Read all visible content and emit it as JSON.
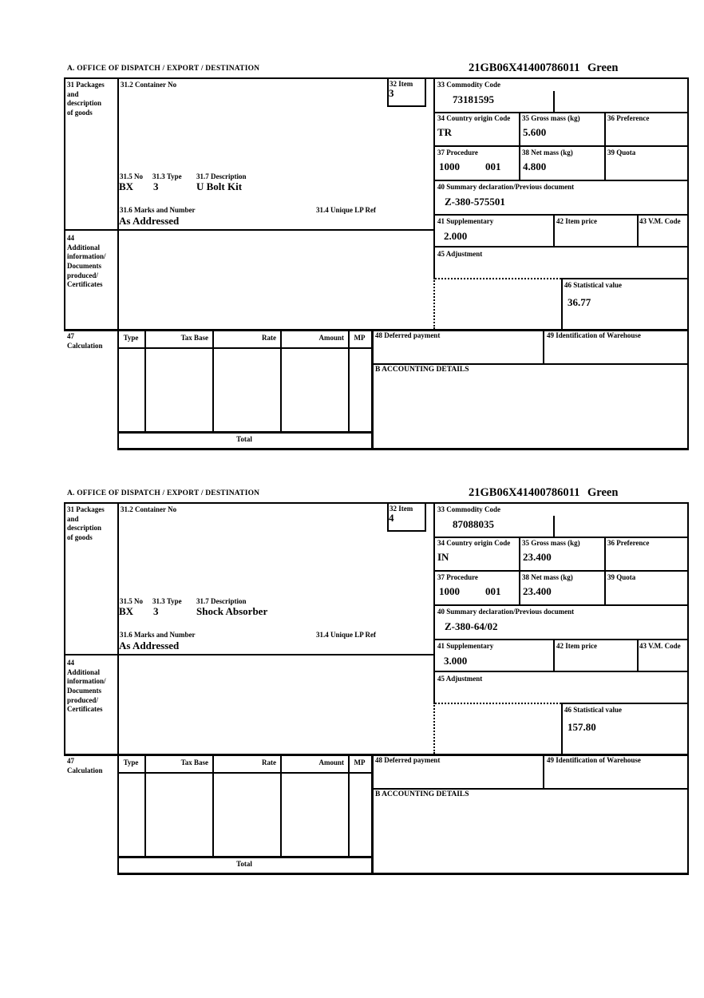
{
  "sections": [
    {
      "header": {
        "title": "A.  OFFICE OF DISPATCH / EXPORT / DESTINATION",
        "reference": "21GB06X41400786011",
        "status": "Green"
      },
      "box31": {
        "label": "31 Packages\nand\ndescription\nof goods",
        "container_label": "31.2 Container No",
        "no_label": "31.5 No",
        "no_value": "BX",
        "type_label": "31.3 Type",
        "type_value": "3",
        "desc_label": "31.7 Description",
        "desc_value": "U Bolt Kit",
        "marks_label": "31.6 Marks and Number",
        "marks_value": "As Addressed",
        "lp_label": "31.4 Unique LP Ref"
      },
      "box32": {
        "label": "32 Item",
        "value": "3"
      },
      "box33": {
        "label": "33 Commodity Code",
        "value": "73181595"
      },
      "box34": {
        "label": "34 Country origin Code",
        "value": "TR"
      },
      "box35": {
        "label": "35 Gross mass (kg)",
        "value": "5.600"
      },
      "box36": {
        "label": "36 Preference",
        "value": ""
      },
      "box37": {
        "label": "37 Procedure",
        "value1": "1000",
        "value2": "001"
      },
      "box38": {
        "label": "38 Net mass (kg)",
        "value": "4.800"
      },
      "box39": {
        "label": "39 Quota",
        "value": ""
      },
      "box40": {
        "label": "40 Summary declaration/Previous document",
        "value": "Z-380-575501"
      },
      "box41": {
        "label": "41 Supplementary",
        "value": "2.000"
      },
      "box42": {
        "label": "42 Item price",
        "value": ""
      },
      "box43": {
        "label": "43 V.M. Code",
        "value": ""
      },
      "box44": {
        "label": "44\nAdditional\ninformation/\nDocuments\nproduced/\nCertificates"
      },
      "box45": {
        "label": "45 Adjustment",
        "value": ""
      },
      "box46": {
        "label": "46 Statistical value",
        "value": "36.77"
      },
      "box47": {
        "label": "47\nCalculation",
        "columns": [
          "Type",
          "Tax Base",
          "Rate",
          "Amount",
          "MP"
        ],
        "total_label": "Total"
      },
      "box48": {
        "label": "48 Deferred payment",
        "value": ""
      },
      "box49": {
        "label": "49 Identification of Warehouse",
        "value": ""
      },
      "accounting": {
        "label": "B ACCOUNTING DETAILS"
      }
    },
    {
      "header": {
        "title": "A.  OFFICE OF DISPATCH / EXPORT / DESTINATION",
        "reference": "21GB06X41400786011",
        "status": "Green"
      },
      "box31": {
        "label": "31 Packages\nand\ndescription\nof goods",
        "container_label": "31.2 Container No",
        "no_label": "31.5 No",
        "no_value": "BX",
        "type_label": "31.3 Type",
        "type_value": "3",
        "desc_label": "31.7 Description",
        "desc_value": "Shock Absorber",
        "marks_label": "31.6 Marks and Number",
        "marks_value": "As Addressed",
        "lp_label": "31.4 Unique LP Ref"
      },
      "box32": {
        "label": "32 Item",
        "value": "4"
      },
      "box33": {
        "label": "33 Commodity Code",
        "value": "87088035"
      },
      "box34": {
        "label": "34 Country origin Code",
        "value": "IN"
      },
      "box35": {
        "label": "35 Gross mass (kg)",
        "value": "23.400"
      },
      "box36": {
        "label": "36 Preference",
        "value": ""
      },
      "box37": {
        "label": "37 Procedure",
        "value1": "1000",
        "value2": "001"
      },
      "box38": {
        "label": "38 Net mass (kg)",
        "value": "23.400"
      },
      "box39": {
        "label": "39 Quota",
        "value": ""
      },
      "box40": {
        "label": "40 Summary declaration/Previous document",
        "value": "Z-380-64/02"
      },
      "box41": {
        "label": "41 Supplementary",
        "value": "3.000"
      },
      "box42": {
        "label": "42 Item price",
        "value": ""
      },
      "box43": {
        "label": "43 V.M. Code",
        "value": ""
      },
      "box44": {
        "label": "44\nAdditional\ninformation/\nDocuments\nproduced/\nCertificates"
      },
      "box45": {
        "label": "45 Adjustment",
        "value": ""
      },
      "box46": {
        "label": "46 Statistical value",
        "value": "157.80"
      },
      "box47": {
        "label": "47\nCalculation",
        "columns": [
          "Type",
          "Tax Base",
          "Rate",
          "Amount",
          "MP"
        ],
        "total_label": "Total"
      },
      "box48": {
        "label": "48 Deferred payment",
        "value": ""
      },
      "box49": {
        "label": "49 Identification of Warehouse",
        "value": ""
      },
      "accounting": {
        "label": "B ACCOUNTING DETAILS"
      }
    }
  ]
}
